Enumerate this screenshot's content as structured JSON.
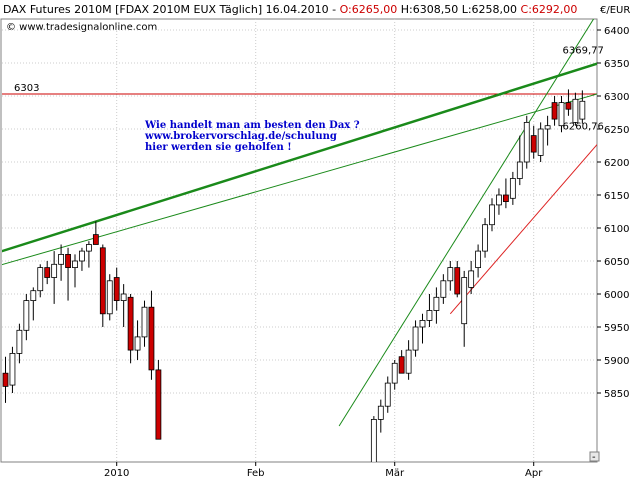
{
  "header": {
    "title": "DAX Futures 2010M [FDAX 2010M EUX  Täglich] 16.04.2010 - ",
    "open_label": "O:6265,00",
    "high_label": " H:6308,50",
    "low_label": " L:6258,00",
    "close_label": " C:6292,00",
    "colors": {
      "text": "#000000",
      "open": "#cc0000",
      "close": "#cc0000"
    }
  },
  "watermark": "© www.tradesignalonline.com",
  "annotation": {
    "lines": [
      "Wie handelt man am besten den Dax ?",
      "www.brokervorschlag.de/schulung",
      "hier werden sie geholfen !"
    ],
    "color": "#0000cc"
  },
  "corner_button": "-",
  "chart_data": {
    "type": "candlestick",
    "currency": "€/EUR",
    "ylim": [
      5810,
      6440
    ],
    "y_ticks": [
      6400,
      6350,
      6300,
      6250,
      6200,
      6150,
      6100,
      6050,
      6000,
      5950,
      5900,
      5850
    ],
    "y_tick_labels": [
      "6400",
      "6350",
      "6300",
      "6250",
      "6200",
      "6150",
      "6100",
      "6050",
      "6000",
      "5950",
      "5900",
      "5850"
    ],
    "x_labels": [
      {
        "label": "2010",
        "index": 16
      },
      {
        "label": "Feb",
        "index": 36
      },
      {
        "label": "Mär",
        "index": 56
      },
      {
        "label": "Apr",
        "index": 76
      }
    ],
    "n_slots": 84,
    "candles": [
      {
        "i": 0,
        "o": 5880,
        "h": 5905,
        "l": 5835,
        "c": 5860
      },
      {
        "i": 1,
        "o": 5862,
        "h": 5920,
        "l": 5850,
        "c": 5910
      },
      {
        "i": 2,
        "o": 5910,
        "h": 5955,
        "l": 5895,
        "c": 5945
      },
      {
        "i": 3,
        "o": 5945,
        "h": 6000,
        "l": 5930,
        "c": 5990
      },
      {
        "i": 4,
        "o": 5990,
        "h": 6010,
        "l": 5960,
        "c": 6005
      },
      {
        "i": 5,
        "o": 6005,
        "h": 6045,
        "l": 5995,
        "c": 6040
      },
      {
        "i": 6,
        "o": 6040,
        "h": 6050,
        "l": 6015,
        "c": 6025
      },
      {
        "i": 7,
        "o": 6025,
        "h": 6065,
        "l": 5985,
        "c": 6045
      },
      {
        "i": 8,
        "o": 6045,
        "h": 6075,
        "l": 6020,
        "c": 6060
      },
      {
        "i": 9,
        "o": 6060,
        "h": 6070,
        "l": 5990,
        "c": 6040
      },
      {
        "i": 10,
        "o": 6040,
        "h": 6060,
        "l": 6010,
        "c": 6050
      },
      {
        "i": 11,
        "o": 6050,
        "h": 6070,
        "l": 6035,
        "c": 6065
      },
      {
        "i": 12,
        "o": 6065,
        "h": 6080,
        "l": 6040,
        "c": 6075
      },
      {
        "i": 13,
        "o": 6090,
        "h": 6110,
        "l": 6075,
        "c": 6075
      },
      {
        "i": 14,
        "o": 6070,
        "h": 6075,
        "l": 5950,
        "c": 5970
      },
      {
        "i": 15,
        "o": 5970,
        "h": 6030,
        "l": 5960,
        "c": 6020
      },
      {
        "i": 16,
        "o": 6025,
        "h": 6040,
        "l": 5975,
        "c": 5990
      },
      {
        "i": 17,
        "o": 5990,
        "h": 6015,
        "l": 5950,
        "c": 6000
      },
      {
        "i": 18,
        "o": 5995,
        "h": 6000,
        "l": 5895,
        "c": 5915
      },
      {
        "i": 19,
        "o": 5915,
        "h": 5960,
        "l": 5900,
        "c": 5935
      },
      {
        "i": 20,
        "o": 5935,
        "h": 5990,
        "l": 5920,
        "c": 5980
      },
      {
        "i": 21,
        "o": 5980,
        "h": 6005,
        "l": 5870,
        "c": 5885
      },
      {
        "i": 22,
        "o": 5885,
        "h": 5900,
        "l": 5780,
        "c": 5780
      },
      {
        "i": 53,
        "o": 5745,
        "h": 5815,
        "l": 5740,
        "c": 5810
      },
      {
        "i": 54,
        "o": 5810,
        "h": 5840,
        "l": 5790,
        "c": 5830
      },
      {
        "i": 55,
        "o": 5830,
        "h": 5875,
        "l": 5820,
        "c": 5865
      },
      {
        "i": 56,
        "o": 5865,
        "h": 5900,
        "l": 5855,
        "c": 5895
      },
      {
        "i": 57,
        "o": 5905,
        "h": 5915,
        "l": 5880,
        "c": 5880
      },
      {
        "i": 58,
        "o": 5880,
        "h": 5930,
        "l": 5870,
        "c": 5915
      },
      {
        "i": 59,
        "o": 5915,
        "h": 5960,
        "l": 5905,
        "c": 5950
      },
      {
        "i": 60,
        "o": 5950,
        "h": 5970,
        "l": 5925,
        "c": 5960
      },
      {
        "i": 61,
        "o": 5960,
        "h": 6000,
        "l": 5950,
        "c": 5975
      },
      {
        "i": 62,
        "o": 5975,
        "h": 6010,
        "l": 5955,
        "c": 5995
      },
      {
        "i": 63,
        "o": 5995,
        "h": 6030,
        "l": 5985,
        "c": 6020
      },
      {
        "i": 64,
        "o": 6020,
        "h": 6050,
        "l": 6005,
        "c": 6040
      },
      {
        "i": 65,
        "o": 6040,
        "h": 6050,
        "l": 5995,
        "c": 6000
      },
      {
        "i": 66,
        "o": 5955,
        "h": 6035,
        "l": 5920,
        "c": 6025
      },
      {
        "i": 67,
        "o": 6010,
        "h": 6050,
        "l": 6000,
        "c": 6035
      },
      {
        "i": 68,
        "o": 6040,
        "h": 6075,
        "l": 6025,
        "c": 6065
      },
      {
        "i": 69,
        "o": 6065,
        "h": 6115,
        "l": 6055,
        "c": 6105
      },
      {
        "i": 70,
        "o": 6105,
        "h": 6145,
        "l": 6095,
        "c": 6135
      },
      {
        "i": 71,
        "o": 6135,
        "h": 6160,
        "l": 6120,
        "c": 6150
      },
      {
        "i": 72,
        "o": 6150,
        "h": 6175,
        "l": 6130,
        "c": 6140
      },
      {
        "i": 73,
        "o": 6145,
        "h": 6185,
        "l": 6135,
        "c": 6175
      },
      {
        "i": 74,
        "o": 6175,
        "h": 6240,
        "l": 6165,
        "c": 6200
      },
      {
        "i": 75,
        "o": 6200,
        "h": 6270,
        "l": 6190,
        "c": 6260
      },
      {
        "i": 76,
        "o": 6240,
        "h": 6255,
        "l": 6205,
        "c": 6215
      },
      {
        "i": 77,
        "o": 6210,
        "h": 6260,
        "l": 6200,
        "c": 6250
      },
      {
        "i": 78,
        "o": 6250,
        "h": 6270,
        "l": 6225,
        "c": 6255
      },
      {
        "i": 79,
        "o": 6290,
        "h": 6300,
        "l": 6255,
        "c": 6265
      },
      {
        "i": 80,
        "o": 6255,
        "h": 6300,
        "l": 6245,
        "c": 6290
      },
      {
        "i": 81,
        "o": 6290,
        "h": 6310,
        "l": 6270,
        "c": 6280
      },
      {
        "i": 82,
        "o": 6260,
        "h": 6305,
        "l": 6255,
        "c": 6295
      },
      {
        "i": 83,
        "o": 6265,
        "h": 6308.5,
        "l": 6258,
        "c": 6292
      }
    ],
    "horizontal_line": {
      "value": 6303,
      "label": "6303",
      "color": "#cc0000"
    },
    "trendlines": [
      {
        "name": "upper-thick",
        "color": "#1a8a1a",
        "width": 2.5,
        "p1": {
          "i": -2,
          "v": 6060
        },
        "p2": {
          "i": 99,
          "v": 6395
        }
      },
      {
        "name": "upper-thin",
        "color": "#1a8a1a",
        "width": 1,
        "p1": {
          "i": -2,
          "v": 6040
        },
        "p2": {
          "i": 99,
          "v": 6345
        }
      },
      {
        "name": "steep-green",
        "color": "#1a8a1a",
        "width": 1,
        "p1": {
          "i": 48,
          "v": 5800
        },
        "p2": {
          "i": 86,
          "v": 6440
        }
      },
      {
        "name": "red-support",
        "color": "#dd2222",
        "width": 1,
        "p1": {
          "i": 64,
          "v": 5970
        },
        "p2": {
          "i": 99,
          "v": 6395
        }
      }
    ],
    "value_labels": [
      {
        "text": "6369,77",
        "color": "#1a8a1a",
        "i": 80,
        "v": 6369
      },
      {
        "text": "6260,76",
        "color": "#cc0000",
        "i": 80,
        "v": 6254
      }
    ],
    "colors": {
      "up": "#ffffff",
      "down": "#cc0000",
      "wick": "#000000",
      "grid": "#cccccc"
    }
  }
}
